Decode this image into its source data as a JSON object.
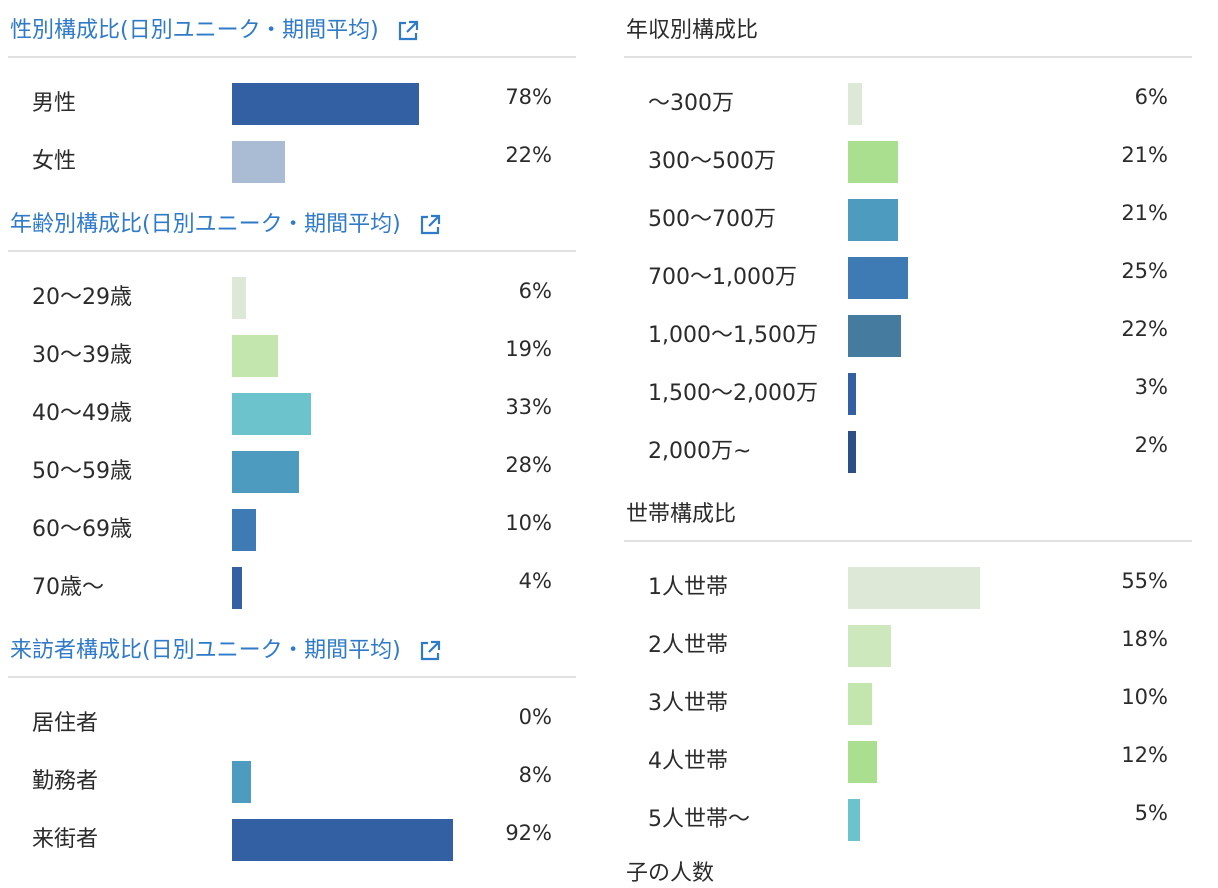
{
  "left": {
    "gender": {
      "title": "性別構成比(日別ユニーク・期間平均)",
      "rows": [
        {
          "label": "男性",
          "value": 78,
          "pct": "78%",
          "color": "#3260a3"
        },
        {
          "label": "女性",
          "value": 22,
          "pct": "22%",
          "color": "#aabbd4"
        }
      ]
    },
    "age": {
      "title": "年齢別構成比(日別ユニーク・期間平均)",
      "rows": [
        {
          "label": "20〜29歳",
          "value": 6,
          "pct": "6%",
          "color": "#dde9d6"
        },
        {
          "label": "30〜39歳",
          "value": 19,
          "pct": "19%",
          "color": "#c3e6ae"
        },
        {
          "label": "40〜49歳",
          "value": 33,
          "pct": "33%",
          "color": "#6cc3cc"
        },
        {
          "label": "50〜59歳",
          "value": 28,
          "pct": "28%",
          "color": "#4d9cc0"
        },
        {
          "label": "60〜69歳",
          "value": 10,
          "pct": "10%",
          "color": "#3e7bb5"
        },
        {
          "label": "70歳〜",
          "value": 4,
          "pct": "4%",
          "color": "#3260a3"
        }
      ]
    },
    "visitor": {
      "title": "来訪者構成比(日別ユニーク・期間平均)",
      "rows": [
        {
          "label": "居住者",
          "value": 0,
          "pct": "0%",
          "color": "#3260a3"
        },
        {
          "label": "勤務者",
          "value": 8,
          "pct": "8%",
          "color": "#4d9cc0"
        },
        {
          "label": "来街者",
          "value": 92,
          "pct": "92%",
          "color": "#3260a3"
        }
      ]
    }
  },
  "right": {
    "income": {
      "title": "年収別構成比",
      "rows": [
        {
          "label": "〜300万",
          "value": 6,
          "pct": "6%",
          "color": "#dde9d6"
        },
        {
          "label": "300〜500万",
          "value": 21,
          "pct": "21%",
          "color": "#a9df8e"
        },
        {
          "label": "500〜700万",
          "value": 21,
          "pct": "21%",
          "color": "#4d9cc0"
        },
        {
          "label": "700〜1,000万",
          "value": 25,
          "pct": "25%",
          "color": "#3e7bb5"
        },
        {
          "label": "1,000〜1,500万",
          "value": 22,
          "pct": "22%",
          "color": "#447b9e"
        },
        {
          "label": "1,500〜2,000万",
          "value": 3,
          "pct": "3%",
          "color": "#3260a3"
        },
        {
          "label": "2,000万~",
          "value": 2,
          "pct": "2%",
          "color": "#2c4f8a"
        }
      ]
    },
    "household": {
      "title": "世帯構成比",
      "rows": [
        {
          "label": "1人世帯",
          "value": 55,
          "pct": "55%",
          "color": "#dde9d6"
        },
        {
          "label": "2人世帯",
          "value": 18,
          "pct": "18%",
          "color": "#cce8bc"
        },
        {
          "label": "3人世帯",
          "value": 10,
          "pct": "10%",
          "color": "#c3e6ae"
        },
        {
          "label": "4人世帯",
          "value": 12,
          "pct": "12%",
          "color": "#a9df8e"
        },
        {
          "label": "5人世帯〜",
          "value": 5,
          "pct": "5%",
          "color": "#6cc3cc"
        }
      ]
    },
    "next_title_cut": "子の人数"
  },
  "icons": {
    "external_link": "external-link-icon"
  },
  "colors": {
    "link": "#2f7ac9",
    "divider": "#e1e1e1",
    "text": "#2b2b2b"
  }
}
